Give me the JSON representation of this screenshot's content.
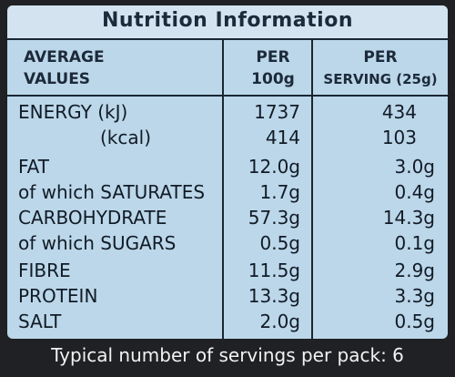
{
  "title": "Nutrition Information",
  "headers": {
    "average_line1": "AVERAGE",
    "average_line2": "VALUES",
    "per100_line1": "PER",
    "per100_line2": "100g",
    "perserving_line1": "PER",
    "perserving_line2": "SERVING (25g)"
  },
  "rows": [
    {
      "label": "ENERGY (kJ)",
      "per100": "1737",
      "serving": "434"
    },
    {
      "label": "(kcal)",
      "per100": "414",
      "serving": "103"
    },
    {
      "label": "FAT",
      "per100": "12.0g",
      "serving": "3.0g"
    },
    {
      "label": "of which SATURATES",
      "per100": "1.7g",
      "serving": "0.4g"
    },
    {
      "label": "CARBOHYDRATE",
      "per100": "57.3g",
      "serving": "14.3g"
    },
    {
      "label": "of which SUGARS",
      "per100": "0.5g",
      "serving": "0.1g"
    },
    {
      "label": "FIBRE",
      "per100": "11.5g",
      "serving": "2.9g"
    },
    {
      "label": "PROTEIN",
      "per100": "13.3g",
      "serving": "3.3g"
    },
    {
      "label": "SALT",
      "per100": "2.0g",
      "serving": "0.5g"
    }
  ],
  "footer": "Typical number of servings per pack: 6"
}
